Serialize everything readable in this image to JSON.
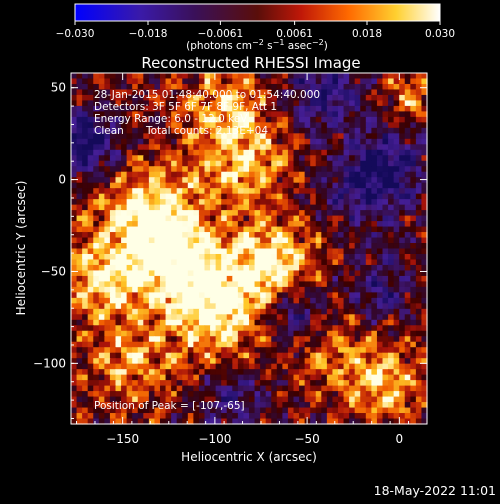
{
  "chart_data": {
    "type": "heatmap",
    "title": "Reconstructed RHESSI Image",
    "xlabel": "Heliocentric X (arcsec)",
    "ylabel": "Heliocentric Y (arcsec)",
    "xlim": [
      -178,
      15
    ],
    "ylim": [
      -133,
      58
    ],
    "x_ticks": [
      -150,
      -100,
      -50,
      0
    ],
    "y_ticks": [
      50,
      0,
      -50,
      -100
    ],
    "x_tick_labels": [
      "−150",
      "−100",
      "−50",
      "0"
    ],
    "y_tick_labels": [
      "50",
      "0",
      "−50",
      "−100"
    ],
    "colorbar": {
      "range": [
        -0.03,
        0.03
      ],
      "ticks": [
        -0.03,
        -0.018,
        -0.0061,
        0.0061,
        0.018,
        0.03
      ],
      "tick_labels": [
        "−0.030",
        "−0.018",
        "−0.0061",
        "0.0061",
        "0.018",
        "0.030"
      ],
      "label_main": "(photons cm",
      "label_exp1": "−2",
      "label_mid1": " s",
      "label_exp2": "−1",
      "label_mid2": " asec",
      "label_exp3": "−2",
      "label_end": ")"
    },
    "annotations": {
      "time": "28-Jan-2015 01:48:40.000 to 01:54:40.000",
      "detectors": "Detectors: 3F 5F 6F 7F 8F 9F, Att 1",
      "energy": "Energy Range: 6.0 - 12.0 keV",
      "clean_label": "Clean",
      "total_counts": "Total counts: 2.13E+04",
      "peak": "Position of Peak = [-107,-65]"
    },
    "peak": {
      "x": -107,
      "y": -65
    },
    "hotspots": [
      {
        "x": -135,
        "y": -20,
        "amp": 1.0,
        "sigma": 18
      },
      {
        "x": -120,
        "y": -45,
        "amp": 0.9,
        "sigma": 16
      },
      {
        "x": -100,
        "y": -70,
        "amp": 1.0,
        "sigma": 18
      },
      {
        "x": -70,
        "y": -45,
        "amp": 1.0,
        "sigma": 15
      },
      {
        "x": -85,
        "y": 10,
        "amp": 0.7,
        "sigma": 18
      },
      {
        "x": -160,
        "y": -55,
        "amp": 0.8,
        "sigma": 16
      },
      {
        "x": -145,
        "y": -100,
        "amp": 0.6,
        "sigma": 16
      },
      {
        "x": -95,
        "y": 40,
        "amp": 0.6,
        "sigma": 14
      },
      {
        "x": -10,
        "y": -110,
        "amp": 0.7,
        "sigma": 15
      },
      {
        "x": -30,
        "y": 20,
        "amp": 0.5,
        "sigma": 12
      },
      {
        "x": 5,
        "y": 45,
        "amp": 0.6,
        "sigma": 10
      },
      {
        "x": -40,
        "y": -90,
        "amp": 0.5,
        "sigma": 14
      }
    ],
    "coldspots": [
      {
        "x": -15,
        "y": 5,
        "amp": 1.0,
        "sigma": 18
      },
      {
        "x": -170,
        "y": 20,
        "amp": 0.9,
        "sigma": 12
      },
      {
        "x": -40,
        "y": 45,
        "amp": 0.7,
        "sigma": 14
      },
      {
        "x": -55,
        "y": -75,
        "amp": 0.6,
        "sigma": 12
      },
      {
        "x": -10,
        "y": -60,
        "amp": 0.5,
        "sigma": 12
      },
      {
        "x": -90,
        "y": -120,
        "amp": 0.5,
        "sigma": 12
      }
    ],
    "footer": "18-May-2022 11:01"
  }
}
